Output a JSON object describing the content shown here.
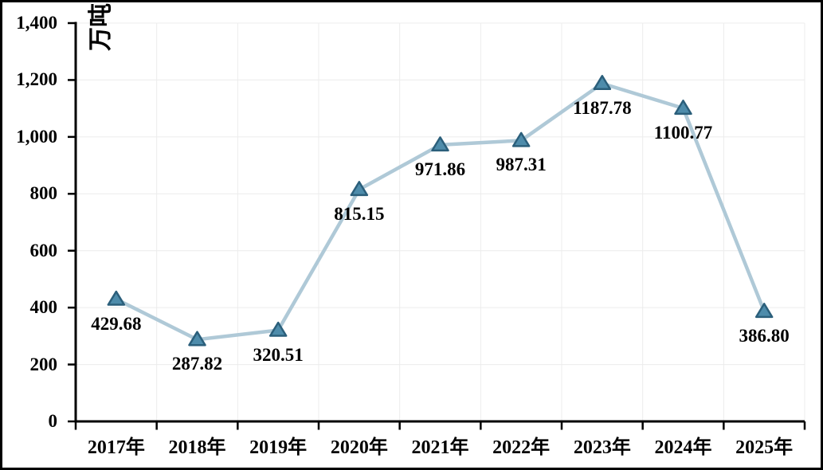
{
  "frame": {
    "background": "#ffffff",
    "border_color": "#000000"
  },
  "chart_data": {
    "type": "line",
    "title": "",
    "unit_label": "万吨",
    "categories": [
      "2017年",
      "2018年",
      "2019年",
      "2020年",
      "2021年",
      "2022年",
      "2023年",
      "2024年",
      "2025年"
    ],
    "values": [
      429.68,
      287.82,
      320.51,
      815.15,
      971.86,
      987.31,
      1187.78,
      1100.77,
      386.8
    ],
    "point_labels": [
      "429.68",
      "287.82",
      "320.51",
      "815.15",
      "971.86",
      "987.31",
      "1187.78",
      "1100.77",
      "386.80"
    ],
    "xlabel": "",
    "ylabel": "万吨",
    "ylim": [
      0,
      1400
    ],
    "y_tick_interval": 200,
    "y_tick_values": [
      0,
      200,
      400,
      600,
      800,
      1000,
      1200,
      1400
    ],
    "y_tick_labels": [
      "0",
      "200",
      "400",
      "600",
      "800",
      "1,000",
      "1,200",
      "1,400"
    ],
    "grid": "light-both",
    "legend_position": "none",
    "marker": "triangle-up",
    "colors": {
      "line": "#afc9d7",
      "marker_fill": "#4e8cab",
      "marker_stroke": "#2b5f7b",
      "axis": "#000000",
      "gridline": "#ececec",
      "label_text": "#000000"
    }
  }
}
